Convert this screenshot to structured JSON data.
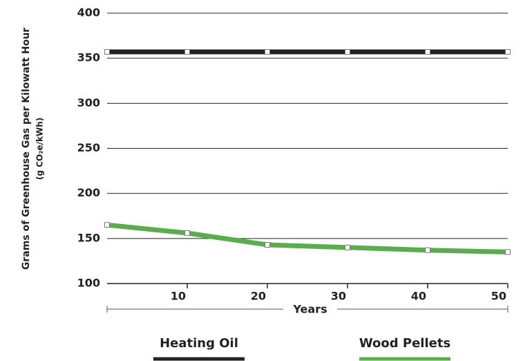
{
  "chart_data": {
    "type": "line",
    "x_label": "Years",
    "y_label": "Grams of Greenhouse Gas per Kilowatt Hour",
    "y_label_units": "(g CO₂e/kWh)",
    "x": [
      0,
      10,
      20,
      30,
      40,
      50
    ],
    "series": [
      {
        "name": "Heating Oil",
        "color": "#222222",
        "values": [
          357,
          357,
          357,
          357,
          357,
          357
        ]
      },
      {
        "name": "Wood Pellets",
        "color": "#5aac4e",
        "values": [
          165,
          156,
          143,
          140,
          137,
          135
        ]
      }
    ],
    "xlim": [
      0,
      50
    ],
    "xticks": [
      10,
      20,
      30,
      40,
      50
    ],
    "ylim": [
      100,
      400
    ],
    "yticks": [
      100,
      150,
      200,
      250,
      300,
      350,
      400
    ],
    "grid": true,
    "legend": "bottom"
  }
}
